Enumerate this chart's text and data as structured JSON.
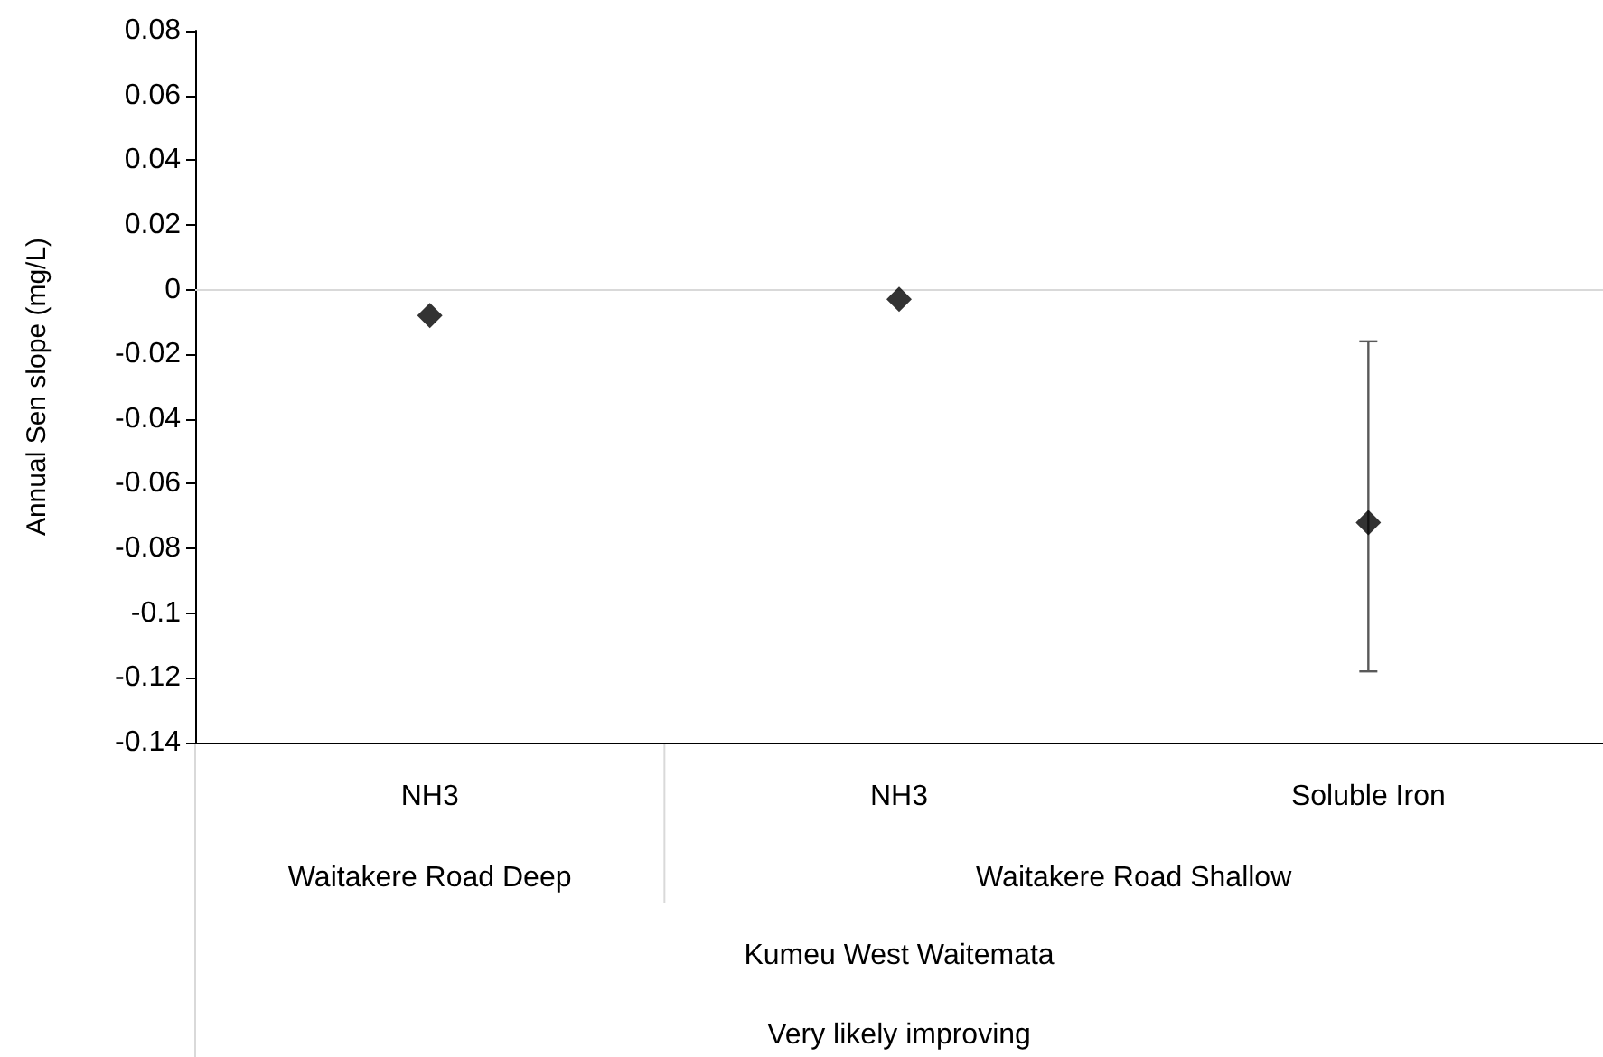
{
  "chart_data": {
    "type": "scatter",
    "ylabel": "Annual Sen slope (mg/L)",
    "categories": [
      "NH3",
      "NH3",
      "Soluble Iron"
    ],
    "values": [
      -0.008,
      -0.003,
      -0.072
    ],
    "errors": [
      null,
      null,
      [
        -0.118,
        -0.016
      ]
    ],
    "color": "#000000",
    "marker": "diamond",
    "ylim": [
      -0.14,
      0.08
    ],
    "yticks": [
      -0.14,
      -0.12,
      -0.1,
      -0.08,
      -0.06,
      -0.04,
      -0.02,
      0,
      0.02,
      0.04,
      0.06,
      0.08
    ],
    "ref_lines": [
      {
        "axis": "y",
        "value": 0,
        "color": "#d9d9d9"
      }
    ],
    "annotations": [
      "Waitakere Road Deep",
      "Waitakere Road Shallow",
      "Kumeu West Waitemata",
      "Very likely improving"
    ]
  }
}
